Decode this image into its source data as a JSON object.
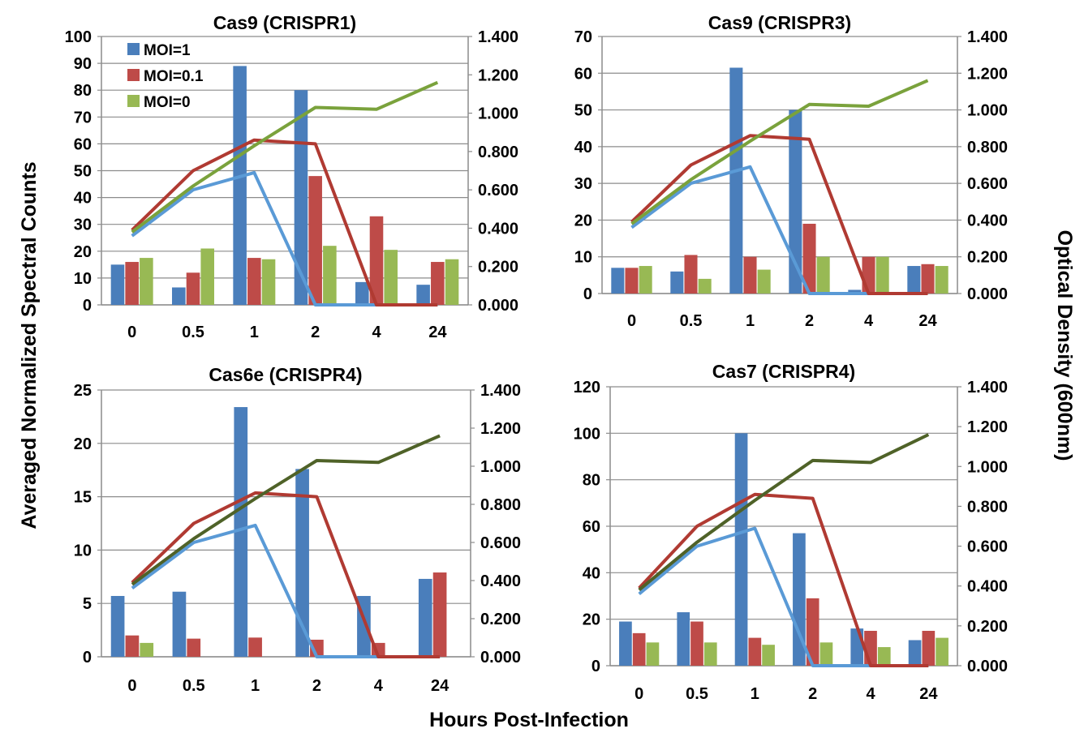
{
  "figure": {
    "ylabel_left": "Averaged Normalized Spectral Counts",
    "ylabel_right": "Optical Density (600nm)",
    "xlabel": "Hours Post-Infection"
  },
  "colors": {
    "moi1": "#4a7ebb",
    "moi01": "#be4b48",
    "moi0": "#98b954",
    "od_moi1": "#5a9ad6",
    "od_moi01": "#b03a32",
    "od_moi0": "#7aa23c",
    "od_moi0_dark": "#4f6228"
  },
  "chart_data": [
    {
      "type": "bar",
      "title": "Cas9 (CRISPR1)",
      "categories": [
        "0",
        "0.5",
        "1",
        "2",
        "4",
        "24"
      ],
      "ylim": [
        0,
        100
      ],
      "y_ticks": [
        0,
        10,
        20,
        30,
        40,
        50,
        60,
        70,
        80,
        90,
        100
      ],
      "y2lim": [
        0,
        1.4
      ],
      "y2_ticks": [
        "0.000",
        "0.200",
        "0.400",
        "0.600",
        "0.800",
        "1.000",
        "1.200",
        "1.400"
      ],
      "legend": "top-left",
      "series": [
        {
          "name": "MOI=1",
          "values": [
            15,
            6.5,
            89,
            80,
            8.5,
            7.5
          ]
        },
        {
          "name": "MOI=0.1",
          "values": [
            16,
            12,
            17.5,
            48,
            33,
            16
          ]
        },
        {
          "name": "MOI=0",
          "values": [
            17.5,
            21,
            17,
            22,
            20.5,
            17
          ]
        }
      ],
      "lines": [
        {
          "values": [
            0.36,
            0.6,
            0.69,
            0.0,
            0.0,
            0.0
          ]
        },
        {
          "values": [
            0.39,
            0.7,
            0.86,
            0.84,
            0.0,
            0.0
          ]
        },
        {
          "values": [
            0.38,
            0.62,
            0.83,
            1.03,
            1.02,
            1.16
          ]
        }
      ]
    },
    {
      "type": "bar",
      "title": "Cas9 (CRISPR3)",
      "categories": [
        "0",
        "0.5",
        "1",
        "2",
        "4",
        "24"
      ],
      "ylim": [
        0,
        70
      ],
      "y_ticks": [
        0,
        10,
        20,
        30,
        40,
        50,
        60,
        70
      ],
      "y2lim": [
        0,
        1.4
      ],
      "y2_ticks": [
        "0.000",
        "0.200",
        "0.400",
        "0.600",
        "0.800",
        "1.000",
        "1.200",
        "1.400"
      ],
      "series": [
        {
          "name": "MOI=1",
          "values": [
            7,
            6,
            61.5,
            50,
            1,
            7.5
          ]
        },
        {
          "name": "MOI=0.1",
          "values": [
            7,
            10.5,
            10,
            19,
            10,
            8
          ]
        },
        {
          "name": "MOI=0",
          "values": [
            7.5,
            4,
            6.5,
            10,
            10,
            7.5
          ]
        }
      ],
      "lines": [
        {
          "values": [
            0.36,
            0.6,
            0.69,
            0.0,
            0.0,
            0.0
          ]
        },
        {
          "values": [
            0.39,
            0.7,
            0.86,
            0.84,
            0.0,
            0.0
          ]
        },
        {
          "values": [
            0.38,
            0.62,
            0.83,
            1.03,
            1.02,
            1.16
          ]
        }
      ]
    },
    {
      "type": "bar",
      "title": "Cas6e (CRISPR4)",
      "categories": [
        "0",
        "0.5",
        "1",
        "2",
        "4",
        "24"
      ],
      "ylim": [
        0,
        25
      ],
      "y_ticks": [
        0,
        5,
        10,
        15,
        20,
        25
      ],
      "y2lim": [
        0,
        1.4
      ],
      "y2_ticks": [
        "0.000",
        "0.200",
        "0.400",
        "0.600",
        "0.800",
        "1.000",
        "1.200",
        "1.400"
      ],
      "series": [
        {
          "name": "MOI=1",
          "values": [
            5.7,
            6.1,
            23.4,
            17.6,
            5.7,
            7.3
          ]
        },
        {
          "name": "MOI=0.1",
          "values": [
            2.0,
            1.7,
            1.8,
            1.6,
            1.3,
            7.9
          ]
        },
        {
          "name": "MOI=0",
          "values": [
            1.3,
            0,
            0,
            0,
            0,
            0
          ]
        }
      ],
      "lines": [
        {
          "values": [
            0.36,
            0.6,
            0.69,
            0.0,
            0.0,
            0.0
          ]
        },
        {
          "values": [
            0.39,
            0.7,
            0.86,
            0.84,
            0.0,
            0.0
          ]
        },
        {
          "values": [
            0.38,
            0.62,
            0.83,
            1.03,
            1.02,
            1.16
          ]
        }
      ]
    },
    {
      "type": "bar",
      "title": "Cas7 (CRISPR4)",
      "categories": [
        "0",
        "0.5",
        "1",
        "2",
        "4",
        "24"
      ],
      "ylim": [
        0,
        120
      ],
      "y_ticks": [
        0,
        20,
        40,
        60,
        80,
        100,
        120
      ],
      "y2lim": [
        0,
        1.4
      ],
      "y2_ticks": [
        "0.000",
        "0.200",
        "0.400",
        "0.600",
        "0.800",
        "1.000",
        "1.200",
        "1.400"
      ],
      "series": [
        {
          "name": "MOI=1",
          "values": [
            19,
            23,
            100,
            57,
            16,
            11
          ]
        },
        {
          "name": "MOI=0.1",
          "values": [
            14,
            19,
            12,
            29,
            15,
            15
          ]
        },
        {
          "name": "MOI=0",
          "values": [
            10,
            10,
            9,
            10,
            8,
            12
          ]
        }
      ],
      "lines": [
        {
          "values": [
            0.36,
            0.6,
            0.69,
            0.0,
            0.0,
            0.0
          ]
        },
        {
          "values": [
            0.39,
            0.7,
            0.86,
            0.84,
            0.0,
            0.0
          ]
        },
        {
          "values": [
            0.38,
            0.62,
            0.83,
            1.03,
            1.02,
            1.16
          ]
        }
      ]
    }
  ]
}
